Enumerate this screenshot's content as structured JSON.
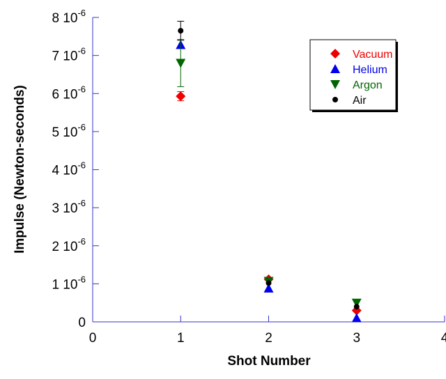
{
  "chart_data": {
    "type": "scatter",
    "xlabel": "Shot Number",
    "ylabel": "Impulse (Newton-seconds)",
    "xlim": [
      0,
      4
    ],
    "ylim": [
      0,
      8e-06
    ],
    "x_ticks": [
      {
        "value": 0,
        "label": "0"
      },
      {
        "value": 1,
        "label": "1"
      },
      {
        "value": 2,
        "label": "2"
      },
      {
        "value": 3,
        "label": "3"
      },
      {
        "value": 4,
        "label": "4"
      }
    ],
    "y_ticks": [
      {
        "value": 0,
        "mantissa": "0",
        "exp": ""
      },
      {
        "value": 1e-06,
        "mantissa": "1 10",
        "exp": "-6"
      },
      {
        "value": 2e-06,
        "mantissa": "2 10",
        "exp": "-6"
      },
      {
        "value": 3e-06,
        "mantissa": "3 10",
        "exp": "-6"
      },
      {
        "value": 4e-06,
        "mantissa": "4 10",
        "exp": "-6"
      },
      {
        "value": 5e-06,
        "mantissa": "5 10",
        "exp": "-6"
      },
      {
        "value": 6e-06,
        "mantissa": "6 10",
        "exp": "-6"
      },
      {
        "value": 7e-06,
        "mantissa": "7 10",
        "exp": "-6"
      },
      {
        "value": 8e-06,
        "mantissa": "8 10",
        "exp": "-6"
      }
    ],
    "legend_position": "top-right",
    "grid": false,
    "axis_color": "#3333cc",
    "series": [
      {
        "name": "Vacuum",
        "color": "#ee0000",
        "marker": "diamond",
        "points": [
          {
            "x": 1,
            "y": 5.93e-06,
            "err": 1.2e-07
          },
          {
            "x": 2,
            "y": 1.12e-06,
            "err": 0
          },
          {
            "x": 3,
            "y": 3e-07,
            "err": 0
          }
        ]
      },
      {
        "name": "Helium",
        "color": "#0000ee",
        "marker": "triangle-up",
        "points": [
          {
            "x": 1,
            "y": 7.28e-06,
            "err": 0
          },
          {
            "x": 2,
            "y": 8.8e-07,
            "err": 0
          },
          {
            "x": 3,
            "y": 1e-07,
            "err": 0
          }
        ]
      },
      {
        "name": "Argon",
        "color": "#006600",
        "marker": "triangle-down",
        "points": [
          {
            "x": 1,
            "y": 6.8e-06,
            "err": 6.2e-07
          },
          {
            "x": 2,
            "y": 1.07e-06,
            "err": 0
          },
          {
            "x": 3,
            "y": 5e-07,
            "err": 0
          }
        ]
      },
      {
        "name": "Air",
        "color": "#000000",
        "marker": "circle",
        "points": [
          {
            "x": 1,
            "y": 7.65e-06,
            "err": 2.5e-07
          },
          {
            "x": 2,
            "y": 1.02e-06,
            "err": 0
          },
          {
            "x": 3,
            "y": 4e-07,
            "err": 0
          }
        ]
      }
    ]
  }
}
